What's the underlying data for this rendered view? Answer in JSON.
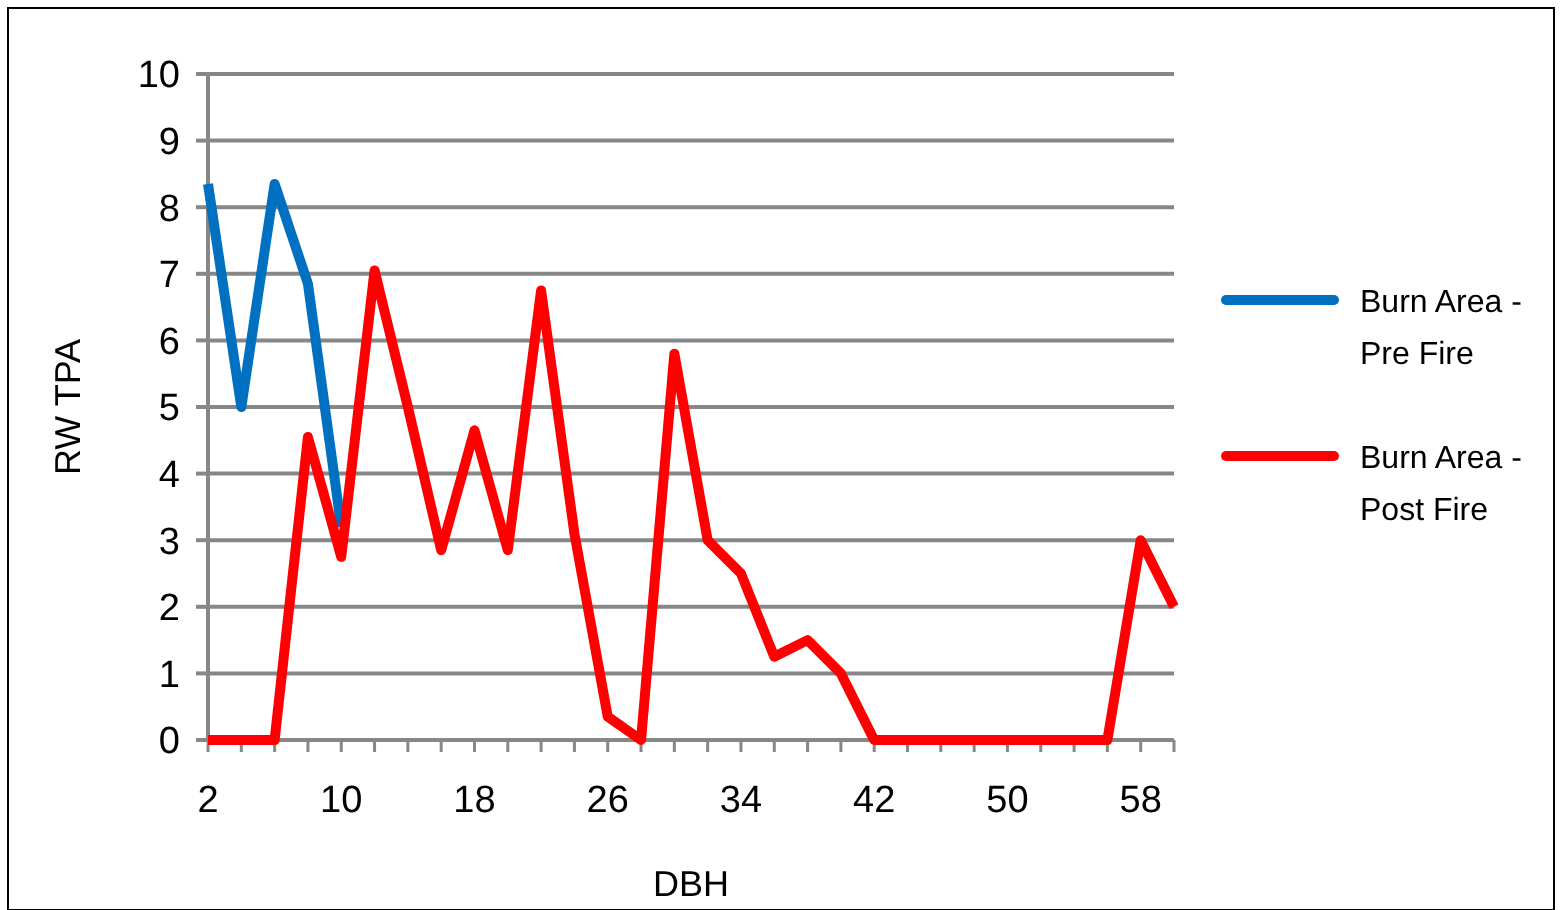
{
  "chart_data": {
    "type": "line",
    "xlabel": "DBH",
    "ylabel": "RW TPA",
    "categories": [
      "2",
      null,
      null,
      null,
      "10",
      null,
      null,
      null,
      "18",
      null,
      null,
      null,
      "26",
      null,
      null,
      null,
      "34",
      null,
      null,
      null,
      "42",
      null,
      null,
      null,
      "50",
      null,
      null,
      null,
      "58",
      null
    ],
    "series": [
      {
        "name": "Burn Area - Pre Fire",
        "color": "#0070c0",
        "values": [
          8.35,
          5.0,
          8.35,
          6.85,
          3.2,
          null,
          null,
          null,
          null,
          null,
          null,
          null,
          null,
          null,
          null,
          null,
          null,
          null,
          null,
          null,
          null,
          null,
          null,
          null,
          null,
          null,
          null,
          null,
          null,
          null
        ]
      },
      {
        "name": "Burn Area - Post Fire",
        "color": "#ff0000",
        "values": [
          0,
          0,
          0,
          4.55,
          2.75,
          7.05,
          5.0,
          2.85,
          4.65,
          2.85,
          6.75,
          3.1,
          0.35,
          0,
          5.8,
          3.0,
          2.5,
          1.25,
          1.5,
          1.0,
          0,
          0,
          0,
          0,
          0,
          0,
          0,
          0,
          3.0,
          2.0
        ]
      }
    ],
    "ylim": [
      0,
      10
    ],
    "yticks": [
      0,
      1,
      2,
      3,
      4,
      5,
      6,
      7,
      8,
      9,
      10
    ],
    "grid": "y",
    "legend": "right",
    "marker": "none",
    "line_style": "solid"
  }
}
